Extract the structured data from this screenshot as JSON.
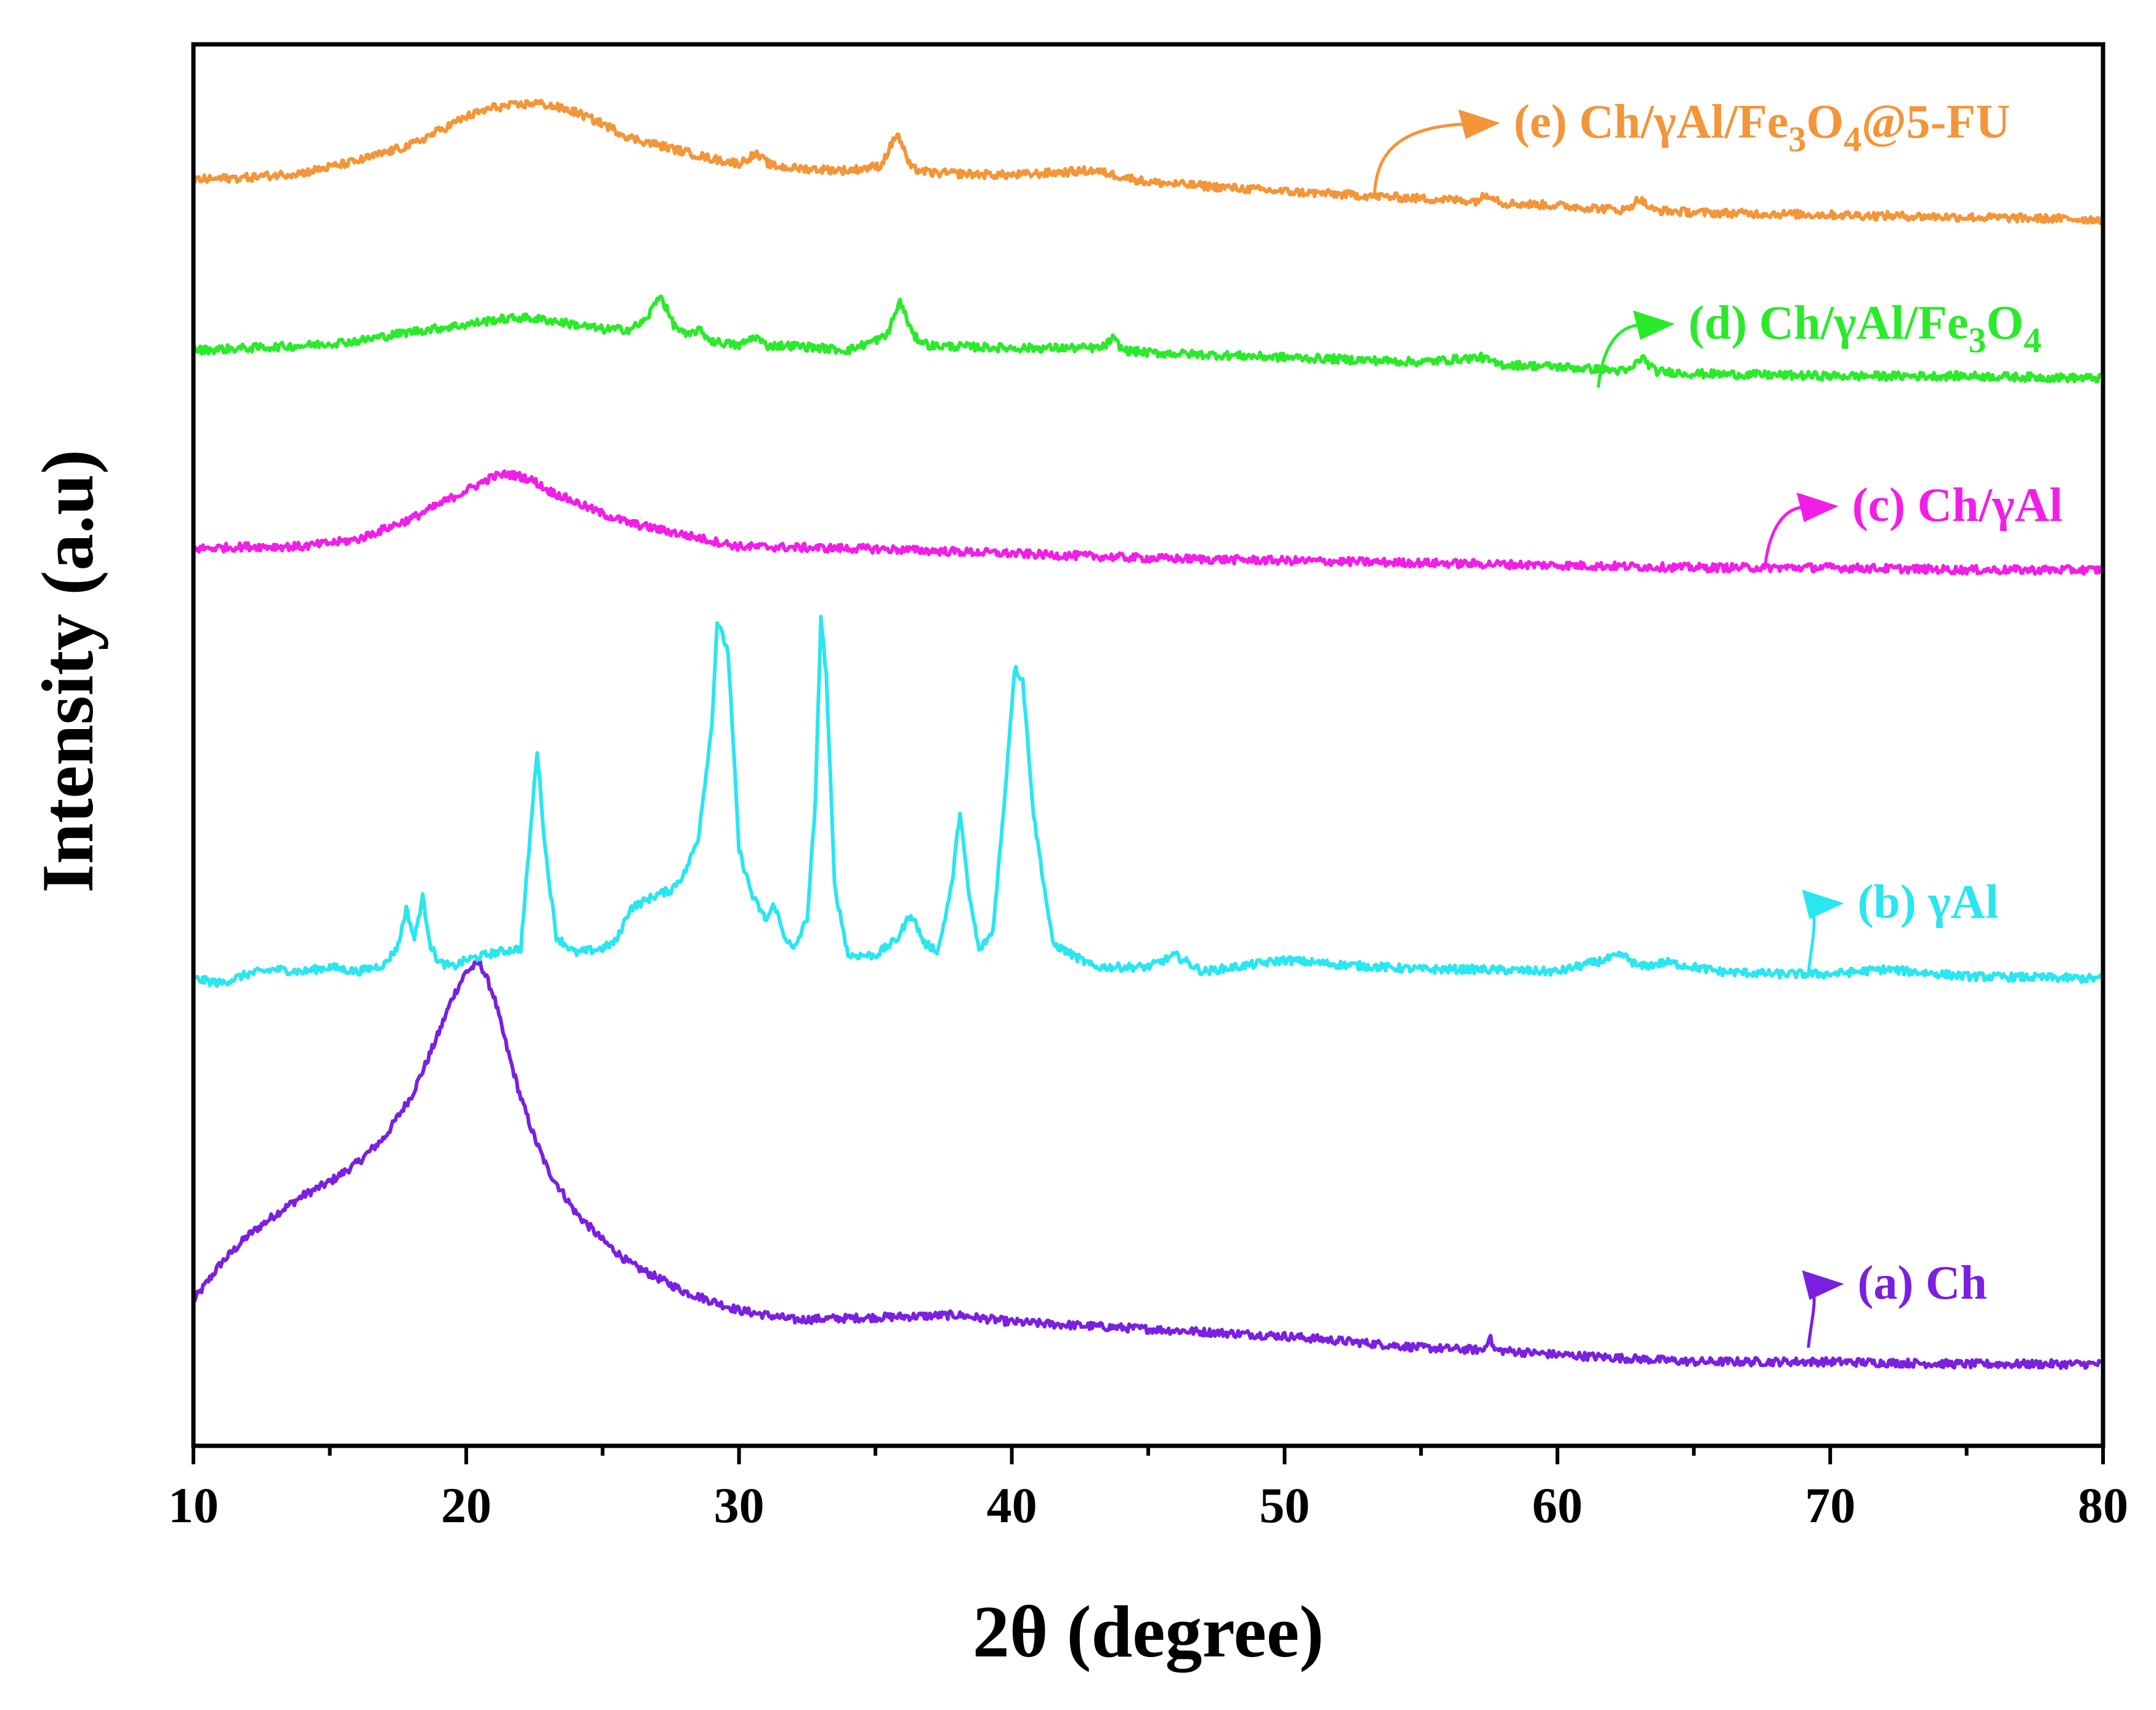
{
  "chart_data": {
    "type": "line",
    "title": "",
    "xlabel": "2θ (degree)",
    "ylabel": "Intensity (a.u)",
    "xlim": [
      10,
      80
    ],
    "ylim": [
      0,
      6
    ],
    "xticks": [
      "10",
      "20",
      "30",
      "40",
      "50",
      "60",
      "70",
      "80"
    ],
    "grid": false,
    "y_ticks_labeled": false,
    "series": [
      {
        "name": "(a) Ch",
        "label_parts": [
          {
            "t": "(a) Ch"
          }
        ],
        "color": "#7b1fe0",
        "arrow_from": [
          69.2,
          0.42
        ],
        "label_at": [
          71.0,
          0.63
        ],
        "x": [
          10,
          11,
          12,
          13,
          14,
          15,
          16,
          17,
          18,
          18.5,
          19,
          19.5,
          20,
          20.5,
          21,
          21.5,
          22,
          22.5,
          23,
          24,
          25,
          26,
          27,
          28,
          30,
          32,
          35,
          38,
          40,
          45,
          50,
          55,
          57.3,
          57.5,
          57.7,
          60,
          65,
          70,
          75,
          80
        ],
        "y": [
          0.62,
          0.78,
          0.9,
          0.99,
          1.07,
          1.13,
          1.21,
          1.32,
          1.5,
          1.63,
          1.77,
          1.92,
          2.03,
          2.07,
          1.93,
          1.7,
          1.49,
          1.32,
          1.18,
          1.0,
          0.88,
          0.78,
          0.72,
          0.66,
          0.58,
          0.54,
          0.55,
          0.56,
          0.53,
          0.5,
          0.47,
          0.42,
          0.41,
          0.47,
          0.41,
          0.39,
          0.36,
          0.36,
          0.35,
          0.35
        ]
      },
      {
        "name": "(b) γAl",
        "label_parts": [
          {
            "t": "(b) γAl"
          }
        ],
        "color": "#29e6f0",
        "arrow_from": [
          69.2,
          2.02
        ],
        "label_at": [
          71.0,
          2.26
        ],
        "x": [
          10,
          11,
          12,
          13,
          14,
          15,
          16,
          17,
          17.5,
          17.8,
          18.1,
          18.4,
          18.7,
          19,
          19.5,
          20,
          21,
          22,
          22.3,
          22.6,
          22.9,
          23.3,
          24,
          25,
          25.5,
          26,
          27,
          27.5,
          28,
          28.5,
          29,
          29.2,
          29.6,
          30,
          30.5,
          31,
          31.3,
          31.6,
          32,
          32.5,
          32.8,
          33,
          33.2,
          33.5,
          34,
          35,
          35.8,
          36.3,
          36.8,
          37.3,
          37.8,
          38.1,
          38.4,
          38.8,
          39.3,
          39.7,
          40.1,
          40.4,
          40.8,
          41.5,
          43,
          45,
          46,
          47,
          50,
          52,
          55,
          57,
          60,
          62.4,
          63,
          64,
          66,
          68,
          70,
          72,
          75,
          80
        ],
        "y": [
          2.0,
          1.98,
          2.02,
          2.04,
          2.03,
          2.05,
          2.03,
          2.06,
          2.14,
          2.3,
          2.17,
          2.35,
          2.14,
          2.07,
          2.05,
          2.08,
          2.11,
          2.13,
          2.55,
          2.98,
          2.55,
          2.18,
          2.11,
          2.13,
          2.16,
          2.3,
          2.36,
          2.38,
          2.45,
          2.6,
          3.08,
          3.53,
          3.4,
          2.55,
          2.35,
          2.25,
          2.32,
          2.2,
          2.12,
          2.26,
          2.75,
          3.55,
          3.3,
          2.4,
          2.1,
          2.1,
          2.17,
          2.28,
          2.15,
          2.12,
          2.4,
          2.72,
          2.38,
          2.12,
          2.2,
          2.72,
          3.33,
          3.28,
          2.7,
          2.15,
          2.05,
          2.05,
          2.1,
          2.03,
          2.08,
          2.06,
          2.04,
          2.04,
          2.03,
          2.1,
          2.05,
          2.07,
          2.03,
          2.02,
          2.02,
          2.04,
          2.01,
          2.0
        ]
      },
      {
        "name": "(c) Ch/γAl",
        "label_parts": [
          {
            "t": "(c) Ch/γAl"
          }
        ],
        "color": "#f21ee8",
        "arrow_from": [
          67.6,
          3.75
        ],
        "label_at": [
          70.8,
          3.96
        ],
        "x": [
          10,
          12,
          14,
          16,
          18,
          19,
          20,
          21,
          21.5,
          22,
          22.5,
          23,
          24,
          25,
          26,
          28,
          30,
          35,
          40,
          45,
          50,
          55,
          60,
          65,
          70,
          75,
          80
        ],
        "y": [
          3.84,
          3.85,
          3.85,
          3.88,
          3.97,
          4.03,
          4.09,
          4.15,
          4.16,
          4.15,
          4.13,
          4.09,
          4.04,
          3.99,
          3.95,
          3.9,
          3.85,
          3.84,
          3.82,
          3.8,
          3.79,
          3.78,
          3.77,
          3.76,
          3.76,
          3.75,
          3.75
        ]
      },
      {
        "name": "(d) Ch/γAl/Fe3O4",
        "label_parts": [
          {
            "t": "(d) Ch/γAl/Fe"
          },
          {
            "t": "3",
            "sub": true
          },
          {
            "t": "O"
          },
          {
            "t": "4",
            "sub": true
          }
        ],
        "color": "#2bea2b",
        "arrow_from": [
          61.5,
          4.53
        ],
        "label_at": [
          64.8,
          4.74
        ],
        "x": [
          10,
          12,
          14,
          16,
          18,
          20,
          21,
          22,
          23,
          24,
          25,
          26,
          26.6,
          27.1,
          27.6,
          28.1,
          28.5,
          29,
          30,
          30.6,
          31,
          32,
          34,
          35.4,
          35.9,
          36.4,
          37,
          40,
          43.3,
          43.7,
          44.1,
          45,
          50,
          55,
          57.2,
          57.8,
          60,
          62.6,
          63.1,
          63.6,
          65,
          70,
          75,
          80
        ],
        "y": [
          4.69,
          4.7,
          4.71,
          4.73,
          4.77,
          4.8,
          4.82,
          4.83,
          4.82,
          4.8,
          4.78,
          4.78,
          4.82,
          4.93,
          4.8,
          4.75,
          4.78,
          4.73,
          4.71,
          4.75,
          4.71,
          4.71,
          4.69,
          4.75,
          4.9,
          4.75,
          4.71,
          4.7,
          4.7,
          4.74,
          4.69,
          4.68,
          4.66,
          4.64,
          4.66,
          4.63,
          4.62,
          4.6,
          4.66,
          4.6,
          4.59,
          4.58,
          4.58,
          4.57
        ]
      },
      {
        "name": "(e) Ch/γAl/Fe3O4@5-FU",
        "label_parts": [
          {
            "t": "(e) Ch/γAl/Fe"
          },
          {
            "t": "3",
            "sub": true
          },
          {
            "t": "O"
          },
          {
            "t": "4",
            "sub": true
          },
          {
            "t": "@5-FU"
          }
        ],
        "color": "#f39539",
        "arrow_from": [
          53.3,
          5.37
        ],
        "label_at": [
          58.4,
          5.6
        ],
        "x": [
          10,
          12,
          14,
          16,
          18,
          19,
          20,
          21,
          22,
          22.5,
          23,
          24,
          25,
          26,
          27,
          28,
          29,
          30,
          30.6,
          31.2,
          32,
          34,
          35.2,
          35.8,
          36.3,
          37,
          40,
          43,
          45,
          50,
          55,
          57,
          57.5,
          58,
          60,
          62.5,
          63,
          63.5,
          65,
          70,
          75,
          80
        ],
        "y": [
          5.42,
          5.43,
          5.45,
          5.5,
          5.57,
          5.63,
          5.69,
          5.73,
          5.74,
          5.75,
          5.74,
          5.71,
          5.66,
          5.6,
          5.57,
          5.54,
          5.51,
          5.49,
          5.53,
          5.48,
          5.47,
          5.46,
          5.48,
          5.62,
          5.47,
          5.45,
          5.44,
          5.46,
          5.41,
          5.37,
          5.34,
          5.33,
          5.36,
          5.32,
          5.31,
          5.29,
          5.34,
          5.29,
          5.28,
          5.27,
          5.26,
          5.25
        ]
      }
    ]
  }
}
